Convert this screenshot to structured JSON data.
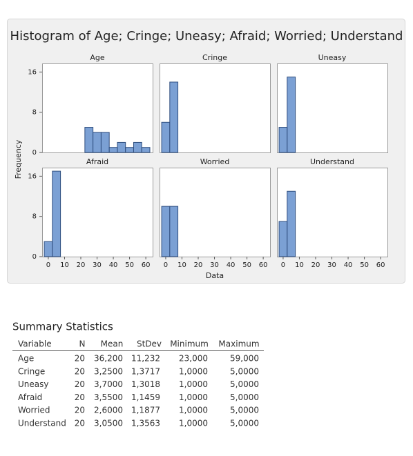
{
  "chart_data": {
    "type": "histogram",
    "title": "Histogram of Age; Cringe; Uneasy; Afraid; Worried; Understand",
    "xlabel": "Data",
    "ylabel": "Frequency",
    "xlim": [
      -3.8,
      64.2
    ],
    "xticks": [
      0,
      10,
      20,
      30,
      40,
      50,
      60
    ],
    "ylim": [
      0,
      17.7
    ],
    "yticks": [
      0,
      8,
      16
    ],
    "color": "#7ba0d4",
    "edgecolor": "#2e4d7e",
    "panels": [
      {
        "title": "Age",
        "bins": [
          22.5,
          27.5,
          32.5,
          37.5,
          42.5,
          47.5,
          52.5,
          57.5,
          62.5
        ],
        "counts": [
          5,
          4,
          4,
          1,
          2,
          1,
          2,
          1
        ]
      },
      {
        "title": "Cringe",
        "bins": [
          -2.5,
          2.5,
          7.5
        ],
        "counts": [
          6,
          14
        ]
      },
      {
        "title": "Uneasy",
        "bins": [
          -2.5,
          2.5,
          7.5
        ],
        "counts": [
          5,
          15
        ]
      },
      {
        "title": "Afraid",
        "bins": [
          -2.5,
          2.5,
          7.5
        ],
        "counts": [
          3,
          17
        ]
      },
      {
        "title": "Worried",
        "bins": [
          -2.5,
          2.5,
          7.5
        ],
        "counts": [
          10,
          10
        ]
      },
      {
        "title": "Understand",
        "bins": [
          -2.5,
          2.5,
          7.5
        ],
        "counts": [
          7,
          13
        ]
      }
    ]
  },
  "table": {
    "title": "Summary Statistics",
    "columns": [
      "Variable",
      "N",
      "Mean",
      "StDev",
      "Minimum",
      "Maximum"
    ],
    "rows": [
      [
        "Age",
        "20",
        "36,200",
        "11,232",
        "23,000",
        "59,000"
      ],
      [
        "Cringe",
        "20",
        "3,2500",
        "1,3717",
        "1,0000",
        "5,0000"
      ],
      [
        "Uneasy",
        "20",
        "3,7000",
        "1,3018",
        "1,0000",
        "5,0000"
      ],
      [
        "Afraid",
        "20",
        "3,5500",
        "1,1459",
        "1,0000",
        "5,0000"
      ],
      [
        "Worried",
        "20",
        "2,6000",
        "1,1877",
        "1,0000",
        "5,0000"
      ],
      [
        "Understand",
        "20",
        "3,0500",
        "1,3563",
        "1,0000",
        "5,0000"
      ]
    ]
  }
}
